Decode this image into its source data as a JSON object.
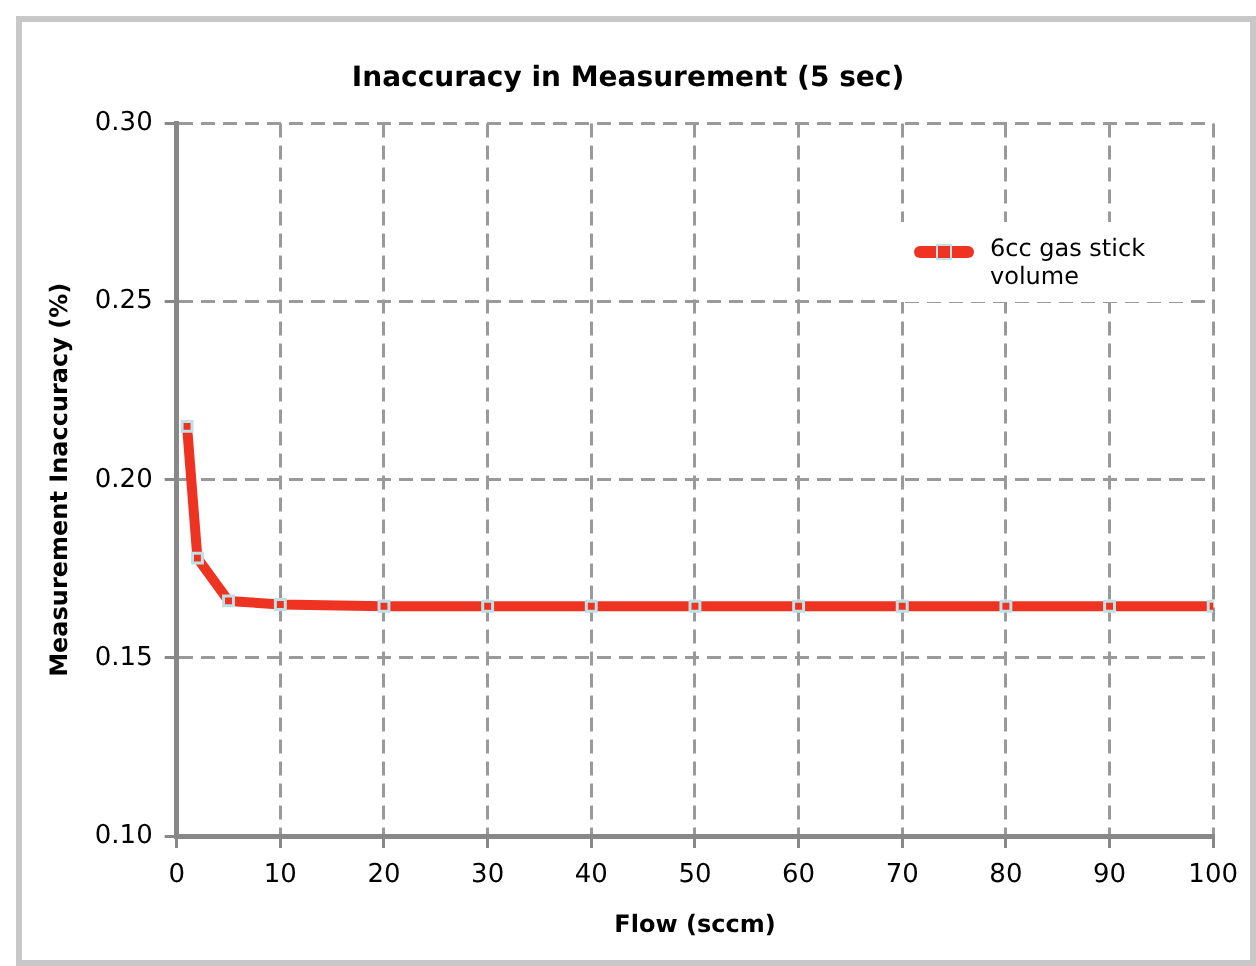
{
  "chart_data": {
    "type": "line",
    "title": "Inaccuracy in Measurement (5 sec)",
    "xlabel": "Flow (sccm)",
    "ylabel": "Measurement Inaccuracy (%)",
    "x": [
      1,
      2,
      5,
      10,
      20,
      30,
      40,
      50,
      60,
      70,
      80,
      90,
      100
    ],
    "series": [
      {
        "name": "6cc gas stick volume",
        "color": "#ee3322",
        "values": [
          0.215,
          0.178,
          0.166,
          0.165,
          0.1645,
          0.1645,
          0.1645,
          0.1645,
          0.1645,
          0.1645,
          0.1645,
          0.1645,
          0.1645
        ]
      }
    ],
    "xlim": [
      0,
      100
    ],
    "xticks": [
      0,
      10,
      20,
      30,
      40,
      50,
      60,
      70,
      80,
      90,
      100
    ],
    "ylim": [
      0.1,
      0.3
    ],
    "yticks": [
      {
        "value": 0.1,
        "label": "0.10"
      },
      0.15,
      {
        "value": 0.2,
        "label": "0.20"
      },
      0.25,
      {
        "value": 0.3,
        "label": "0.30"
      }
    ],
    "grid": true,
    "legend": "top right",
    "marker": "square",
    "line_style": "solid"
  }
}
